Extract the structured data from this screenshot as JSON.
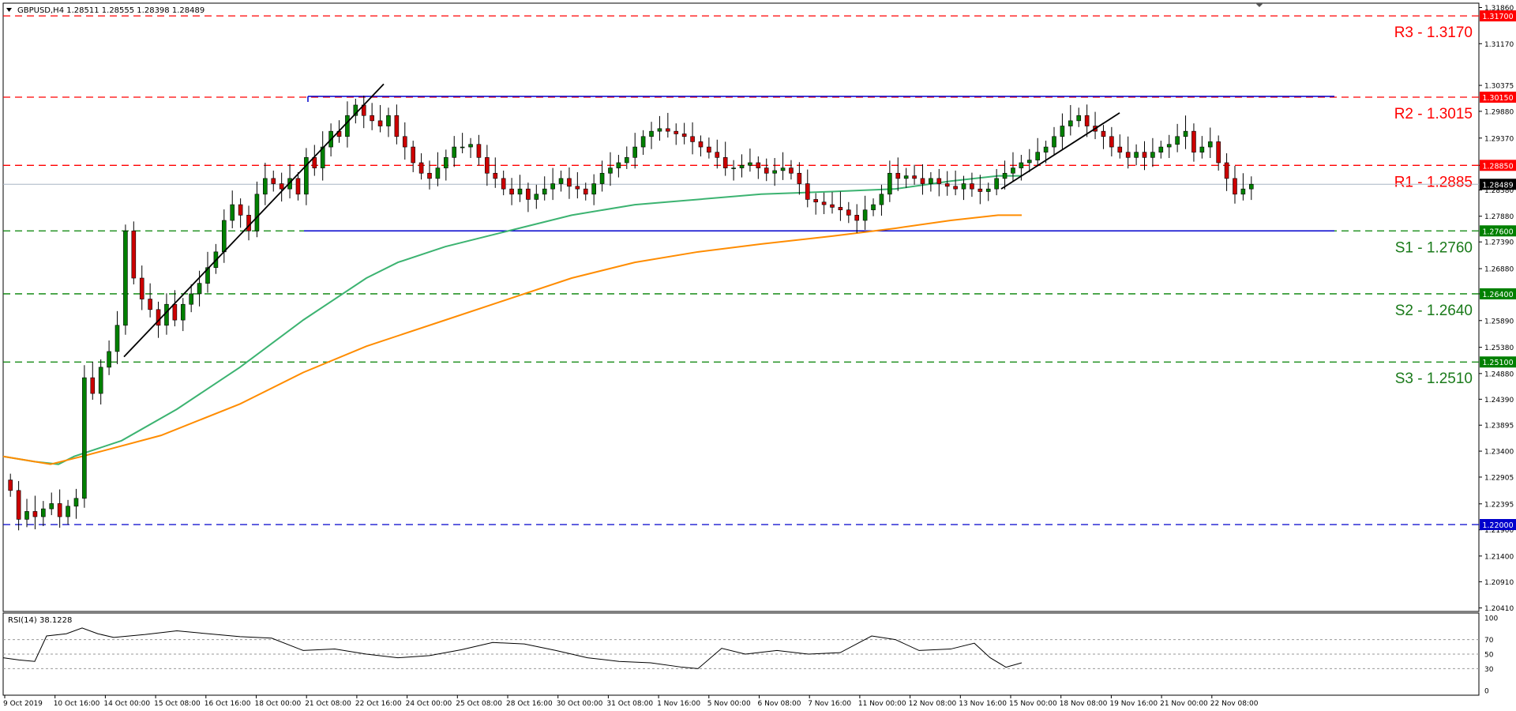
{
  "header": {
    "symbol_info": "GBPUSD,H4  1.28511 1.28555 1.28398 1.28489"
  },
  "rsi_panel": {
    "label": "RSI(14) 38.1228",
    "levels": [
      70,
      50,
      30
    ],
    "ticks": [
      100,
      70,
      50,
      30,
      0
    ]
  },
  "colors": {
    "resistance": "#ff0000",
    "support": "#008000",
    "channel": "#0000cc",
    "bull_candle": "#008000",
    "bear_candle": "#cc0000",
    "ma_fast": "#3cb371",
    "ma_slow": "#ff8c00",
    "trendline": "#000000",
    "rsi_line": "#000000"
  },
  "price_ticks": [
    "1.31860",
    "1.31170",
    "1.30375",
    "1.29880",
    "1.29370",
    "1.28850",
    "1.28380",
    "1.27880",
    "1.27390",
    "1.26880",
    "1.26400",
    "1.25890",
    "1.25380",
    "1.24880",
    "1.24390",
    "1.23895",
    "1.23400",
    "1.22905",
    "1.22395",
    "1.21900",
    "1.21400",
    "1.20910",
    "1.20410"
  ],
  "time_labels": [
    "9 Oct 2019",
    "10 Oct 16:00",
    "14 Oct 00:00",
    "15 Oct 08:00",
    "16 Oct 16:00",
    "18 Oct 00:00",
    "21 Oct 08:00",
    "22 Oct 16:00",
    "24 Oct 00:00",
    "25 Oct 08:00",
    "28 Oct 16:00",
    "30 Oct 00:00",
    "31 Oct 08:00",
    "1 Nov 16:00",
    "5 Nov 00:00",
    "6 Nov 08:00",
    "7 Nov 16:00",
    "11 Nov 00:00",
    "12 Nov 08:00",
    "13 Nov 16:00",
    "15 Nov 00:00",
    "18 Nov 08:00",
    "19 Nov 16:00",
    "21 Nov 00:00",
    "22 Nov 08:00"
  ],
  "chart_data": {
    "type": "candlestick",
    "ylim": [
      1.202,
      1.3195
    ],
    "levels": [
      {
        "label": "R3 - 1.3170",
        "value": 1.317,
        "badge": "1.31700",
        "kind": "resistance"
      },
      {
        "label": "R2 - 1.3015",
        "value": 1.3015,
        "badge": "1.30150",
        "kind": "resistance"
      },
      {
        "label": "R1 - 1.2885",
        "value": 1.2885,
        "badge": "1.28850",
        "kind": "resistance"
      },
      {
        "label": "S1 - 1.2760",
        "value": 1.276,
        "badge": "1.27600",
        "kind": "support"
      },
      {
        "label": "S2 - 1.2640",
        "value": 1.264,
        "badge": "1.26400",
        "kind": "support"
      },
      {
        "label": "S3 - 1.2510",
        "value": 1.251,
        "badge": "1.25100",
        "kind": "support"
      },
      {
        "label": "",
        "value": 1.22,
        "badge": "1.22000",
        "kind": "channel"
      }
    ],
    "current_price": {
      "value": 1.28489,
      "label": "1.28489"
    },
    "closes": [
      1.2265,
      1.221,
      1.2225,
      1.2215,
      1.223,
      1.224,
      1.2215,
      1.2235,
      1.225,
      1.248,
      1.245,
      1.25,
      1.253,
      1.258,
      1.276,
      1.267,
      1.263,
      1.261,
      1.258,
      1.262,
      1.259,
      1.262,
      1.264,
      1.266,
      1.269,
      1.272,
      1.278,
      1.281,
      1.279,
      1.276,
      1.283,
      1.286,
      1.285,
      1.284,
      1.286,
      1.283,
      1.29,
      1.288,
      1.292,
      1.295,
      1.294,
      1.298,
      1.3,
      1.298,
      1.297,
      1.296,
      1.298,
      1.294,
      1.292,
      1.289,
      1.287,
      1.286,
      1.288,
      1.29,
      1.292,
      1.292,
      1.2925,
      1.29,
      1.287,
      1.286,
      1.284,
      1.283,
      1.284,
      1.282,
      1.283,
      1.284,
      1.285,
      1.286,
      1.2845,
      1.284,
      1.283,
      1.285,
      1.287,
      1.288,
      1.289,
      1.29,
      1.292,
      1.294,
      1.295,
      1.2955,
      1.295,
      1.2945,
      1.294,
      1.293,
      1.292,
      1.291,
      1.29,
      1.288,
      1.288,
      1.2885,
      1.289,
      1.288,
      1.287,
      1.2875,
      1.288,
      1.287,
      1.285,
      1.282,
      1.2815,
      1.281,
      1.2805,
      1.28,
      1.279,
      1.278,
      1.28,
      1.281,
      1.283,
      1.287,
      1.286,
      1.2865,
      1.286,
      1.285,
      1.286,
      1.285,
      1.2845,
      1.284,
      1.285,
      1.284,
      1.2835,
      1.284,
      1.286,
      1.287,
      1.288,
      1.289,
      1.2895,
      1.291,
      1.292,
      1.294,
      1.296,
      1.297,
      1.298,
      1.296,
      1.295,
      1.294,
      1.292,
      1.291,
      1.29,
      1.291,
      1.29,
      1.291,
      1.292,
      1.2925,
      1.294,
      1.295,
      1.291,
      1.292,
      1.293,
      1.289,
      1.286,
      1.283,
      1.284,
      1.2849
    ],
    "ma_fast": [
      [
        0,
        1.233
      ],
      [
        40,
        1.232
      ],
      [
        70,
        1.2315
      ],
      [
        90,
        1.233
      ],
      [
        150,
        1.236
      ],
      [
        220,
        1.242
      ],
      [
        300,
        1.25
      ],
      [
        380,
        1.259
      ],
      [
        460,
        1.267
      ],
      [
        500,
        1.27
      ],
      [
        560,
        1.273
      ],
      [
        640,
        1.276
      ],
      [
        720,
        1.279
      ],
      [
        800,
        1.281
      ],
      [
        880,
        1.282
      ],
      [
        960,
        1.283
      ],
      [
        1050,
        1.2835
      ],
      [
        1130,
        1.284
      ],
      [
        1200,
        1.2855
      ],
      [
        1260,
        1.2865
      ],
      [
        1290,
        1.2865
      ]
    ],
    "ma_slow": [
      [
        0,
        1.233
      ],
      [
        60,
        1.2315
      ],
      [
        100,
        1.233
      ],
      [
        200,
        1.237
      ],
      [
        300,
        1.243
      ],
      [
        380,
        1.249
      ],
      [
        460,
        1.254
      ],
      [
        560,
        1.259
      ],
      [
        640,
        1.263
      ],
      [
        720,
        1.267
      ],
      [
        800,
        1.27
      ],
      [
        880,
        1.272
      ],
      [
        960,
        1.2735
      ],
      [
        1050,
        1.275
      ],
      [
        1130,
        1.2765
      ],
      [
        1200,
        1.278
      ],
      [
        1260,
        1.279
      ],
      [
        1290,
        1.279
      ]
    ],
    "rsi": [
      [
        0,
        45
      ],
      [
        20,
        42
      ],
      [
        40,
        40
      ],
      [
        55,
        75
      ],
      [
        80,
        78
      ],
      [
        100,
        86
      ],
      [
        120,
        78
      ],
      [
        140,
        73
      ],
      [
        180,
        77
      ],
      [
        220,
        82
      ],
      [
        260,
        78
      ],
      [
        300,
        74
      ],
      [
        340,
        72
      ],
      [
        380,
        55
      ],
      [
        420,
        57
      ],
      [
        460,
        50
      ],
      [
        500,
        45
      ],
      [
        540,
        48
      ],
      [
        580,
        56
      ],
      [
        620,
        66
      ],
      [
        660,
        64
      ],
      [
        700,
        55
      ],
      [
        740,
        45
      ],
      [
        780,
        40
      ],
      [
        820,
        38
      ],
      [
        860,
        32
      ],
      [
        880,
        30
      ],
      [
        910,
        58
      ],
      [
        940,
        50
      ],
      [
        980,
        55
      ],
      [
        1020,
        50
      ],
      [
        1060,
        52
      ],
      [
        1100,
        75
      ],
      [
        1130,
        70
      ],
      [
        1160,
        55
      ],
      [
        1200,
        57
      ],
      [
        1230,
        65
      ],
      [
        1250,
        45
      ],
      [
        1270,
        32
      ],
      [
        1290,
        38
      ]
    ]
  }
}
